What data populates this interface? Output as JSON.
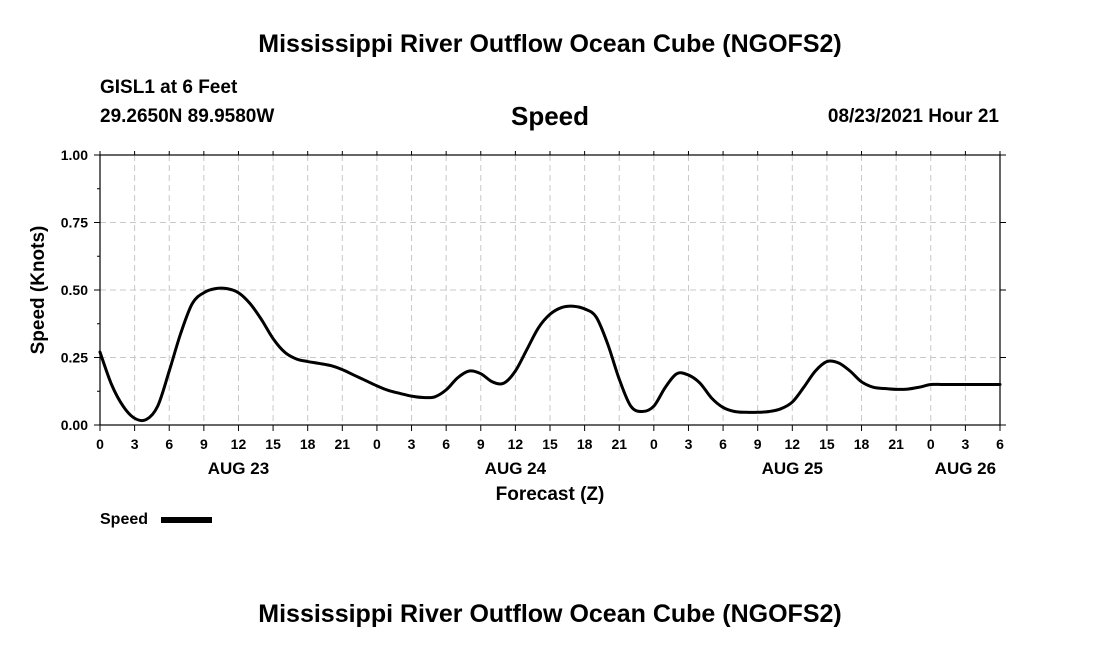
{
  "header": {
    "title": "Mississippi River Outflow Ocean Cube (NGOFS2)",
    "station": "GISL1 at 6 Feet",
    "coords": "29.2650N  89.9580W",
    "variable": "Speed",
    "datetime": "08/23/2021 Hour 21"
  },
  "footer": {
    "title": "Mississippi River Outflow Ocean Cube (NGOFS2)"
  },
  "chart_data": {
    "type": "line",
    "title": "Speed",
    "xlabel": "Forecast (Z)",
    "ylabel": "Speed (Knots)",
    "x_unit": "hours from 2021-08-23 00Z",
    "xlim": [
      0,
      78
    ],
    "ylim": [
      0,
      1.0
    ],
    "grid": true,
    "y_ticks": [
      "0.00",
      "0.25",
      "0.50",
      "0.75",
      "1.00"
    ],
    "x_ticks": [
      "0",
      "3",
      "6",
      "9",
      "12",
      "15",
      "18",
      "21",
      "0",
      "3",
      "6",
      "9",
      "12",
      "15",
      "18",
      "21",
      "0",
      "3",
      "6",
      "9",
      "12",
      "15",
      "18",
      "21",
      "0",
      "3",
      "6"
    ],
    "day_labels": [
      {
        "label": "AUG 23",
        "hour": 12
      },
      {
        "label": "AUG 24",
        "hour": 36
      },
      {
        "label": "AUG 25",
        "hour": 60
      },
      {
        "label": "AUG 26",
        "hour": 75
      }
    ],
    "legend": {
      "label": "Speed",
      "position": "bottom-left"
    },
    "series": [
      {
        "name": "Speed",
        "color": "#000000",
        "x": [
          0,
          1,
          2,
          3,
          4,
          5,
          6,
          7,
          8,
          9,
          10,
          11,
          12,
          13,
          14,
          15,
          16,
          17,
          18,
          19,
          20,
          21,
          22,
          23,
          24,
          25,
          26,
          27,
          28,
          29,
          30,
          31,
          32,
          33,
          34,
          35,
          36,
          37,
          38,
          39,
          40,
          41,
          42,
          43,
          44,
          45,
          46,
          47,
          48,
          49,
          50,
          51,
          52,
          53,
          54,
          55,
          56,
          57,
          58,
          59,
          60,
          61,
          62,
          63,
          64,
          65,
          66,
          67,
          68,
          69,
          70,
          71,
          72,
          73,
          74,
          75,
          76,
          77,
          78
        ],
        "values": [
          0.27,
          0.15,
          0.07,
          0.025,
          0.02,
          0.07,
          0.2,
          0.34,
          0.45,
          0.49,
          0.505,
          0.505,
          0.49,
          0.45,
          0.39,
          0.32,
          0.27,
          0.245,
          0.235,
          0.228,
          0.22,
          0.205,
          0.185,
          0.165,
          0.145,
          0.128,
          0.117,
          0.107,
          0.102,
          0.104,
          0.13,
          0.175,
          0.2,
          0.19,
          0.16,
          0.155,
          0.2,
          0.28,
          0.36,
          0.41,
          0.435,
          0.44,
          0.43,
          0.4,
          0.3,
          0.17,
          0.07,
          0.05,
          0.07,
          0.14,
          0.19,
          0.185,
          0.155,
          0.1,
          0.065,
          0.05,
          0.047,
          0.047,
          0.05,
          0.06,
          0.085,
          0.14,
          0.2,
          0.235,
          0.23,
          0.2,
          0.16,
          0.14,
          0.135,
          0.132,
          0.133,
          0.14,
          0.15,
          0.15,
          0.15,
          0.15,
          0.15,
          0.15,
          0.15
        ]
      }
    ]
  }
}
